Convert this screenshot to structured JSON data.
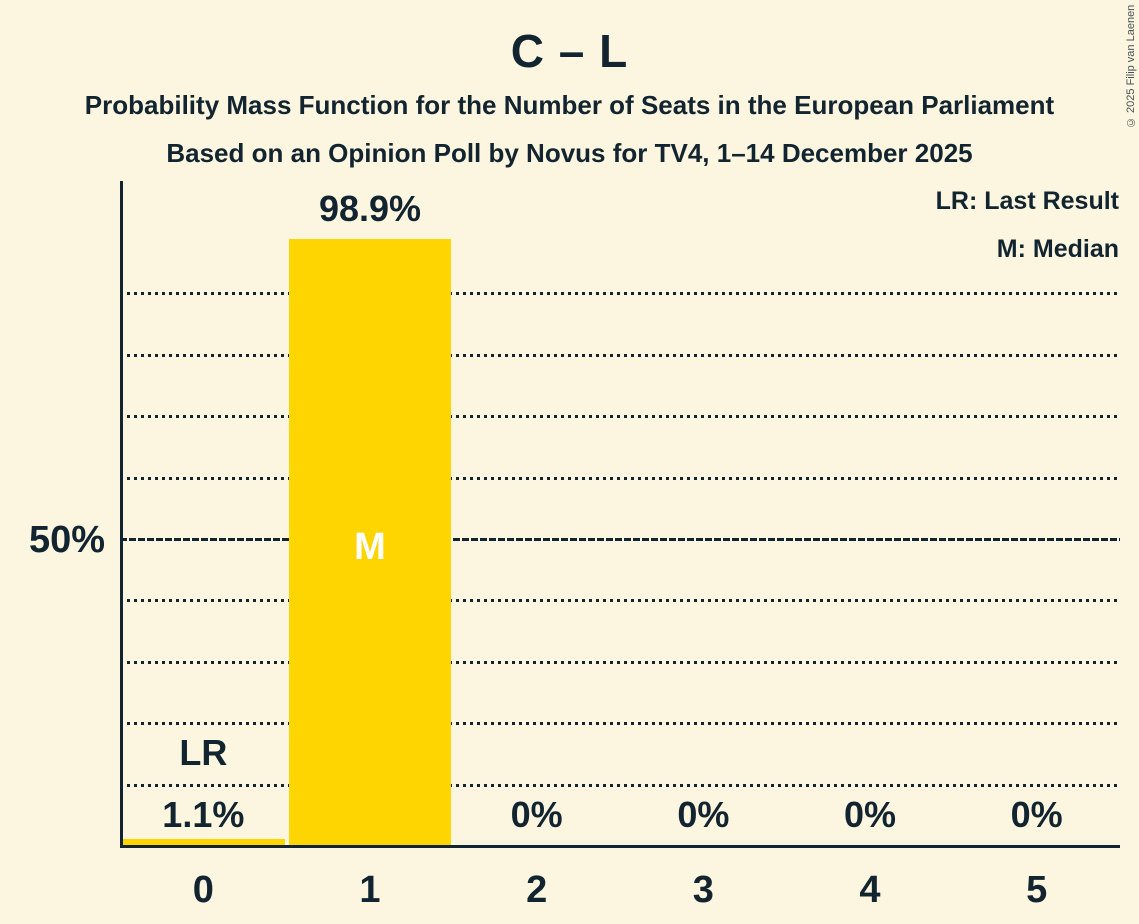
{
  "title": "C – L",
  "subtitle": {
    "line1": "Probability Mass Function for the Number of Seats in the European Parliament",
    "line2": "Based on an Opinion Poll by Novus for TV4, 1–14 December 2025"
  },
  "legend": {
    "last_result": "LR: Last Result",
    "median": "M: Median"
  },
  "copyright": "© 2025 Filip van Laenen",
  "y_axis": {
    "tick_label": "50%"
  },
  "chart_data": {
    "type": "bar",
    "title": "C – L",
    "categories": [
      "0",
      "1",
      "2",
      "3",
      "4",
      "5"
    ],
    "values": [
      1.1,
      98.9,
      0,
      0,
      0,
      0
    ],
    "bar_labels": [
      "1.1%",
      "98.9%",
      "0%",
      "0%",
      "0%",
      "0%"
    ],
    "ylim": [
      0,
      100
    ],
    "y_tick_labels": [
      {
        "pct": 50,
        "label": "50%"
      }
    ],
    "y_gridlines_pct": [
      10,
      20,
      30,
      40,
      60,
      70,
      80,
      90
    ],
    "y_emphasis_line_pct": 50,
    "grid_style": "dotted",
    "legend_position": "top-right",
    "annotations": [
      {
        "category_index": 0,
        "text": "LR",
        "placement": "above-value-label"
      },
      {
        "category_index": 1,
        "text": "M",
        "placement": "inside-bar-at-50pct"
      }
    ],
    "colors": {
      "bar": "#FFD500",
      "background": "#FCF5DF",
      "text": "#112430",
      "annotation_inside_bar": "#FFFFFF"
    }
  }
}
